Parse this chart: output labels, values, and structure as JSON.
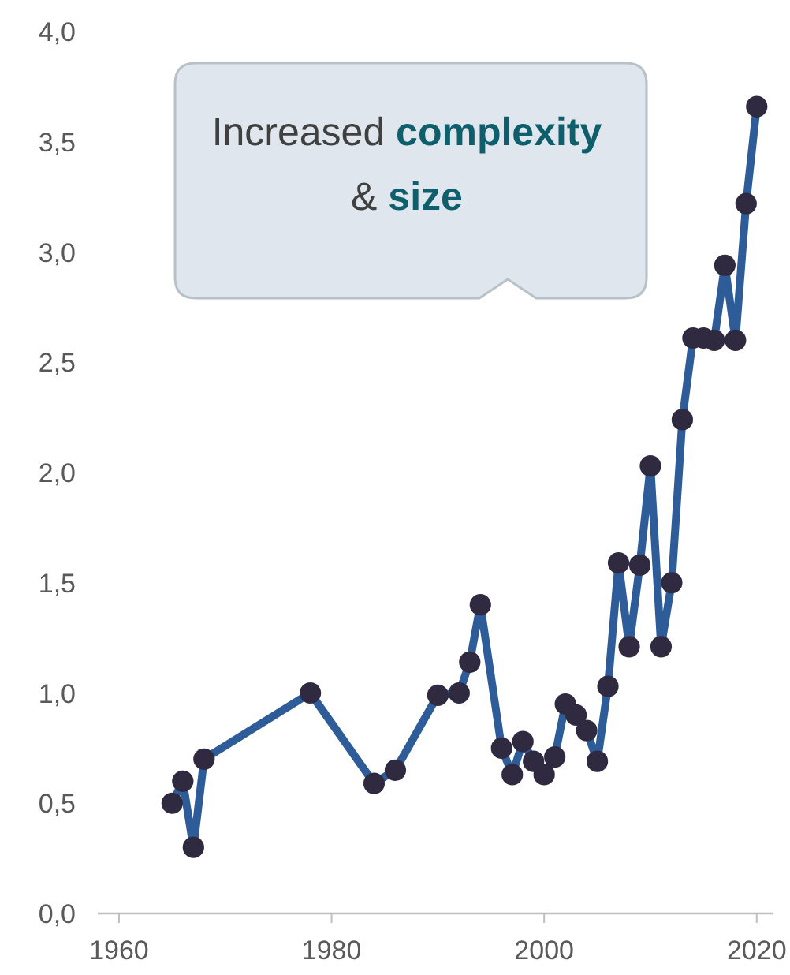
{
  "chart_data": {
    "type": "line",
    "x": [
      1965,
      1966,
      1967,
      1968,
      1978,
      1984,
      1986,
      1990,
      1992,
      1993,
      1994,
      1996,
      1997,
      1998,
      1999,
      2000,
      2001,
      2002,
      2003,
      2004,
      2005,
      2006,
      2007,
      2008,
      2009,
      2010,
      2011,
      2012,
      2013,
      2014,
      2015,
      2016,
      2017,
      2018,
      2019,
      2020
    ],
    "series": [
      {
        "color": "#2e5c99",
        "values": [
          0.5,
          0.6,
          0.3,
          0.7,
          1.0,
          0.59,
          0.65,
          0.99,
          1.0,
          1.14,
          1.4,
          0.75,
          0.63,
          0.78,
          0.69,
          0.63,
          0.71,
          0.95,
          0.9,
          0.83,
          0.69,
          1.03,
          1.59,
          1.21,
          1.58,
          2.03,
          1.21,
          1.5,
          2.24,
          2.61,
          2.61,
          2.6,
          2.94,
          2.6,
          3.22,
          3.66
        ]
      }
    ],
    "marker": "circle",
    "line_style": "solid",
    "grid": false,
    "xlim": [
      1958,
      2021.5
    ],
    "xticks": [
      1960,
      1980,
      2000,
      2020
    ],
    "ylim": [
      0,
      4
    ],
    "yticks": [
      {
        "value": 0,
        "label": "0,0"
      },
      {
        "value": 0.5,
        "label": "0,5"
      },
      {
        "value": 1,
        "label": "1,0"
      },
      {
        "value": 1.5,
        "label": "1,5"
      },
      {
        "value": 2,
        "label": "2,0"
      },
      {
        "value": 2.5,
        "label": "2,5"
      },
      {
        "value": 3,
        "label": "3,0"
      },
      {
        "value": 3.5,
        "label": "3,5"
      },
      {
        "value": 4,
        "label": "4,0"
      }
    ],
    "annotations": [
      "Increased complexity & size"
    ]
  }
}
